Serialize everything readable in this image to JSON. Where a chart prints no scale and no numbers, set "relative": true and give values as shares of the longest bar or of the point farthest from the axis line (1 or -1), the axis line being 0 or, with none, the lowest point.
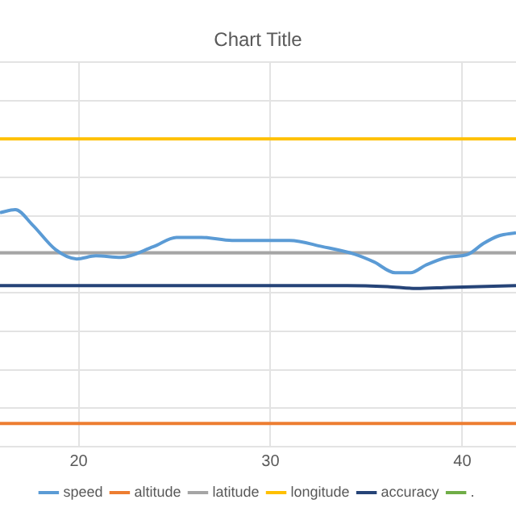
{
  "chart_data": {
    "type": "line",
    "title": "Chart Title",
    "relative": true,
    "xlim": [
      15.9,
      42.8
    ],
    "xticks": [
      20,
      30,
      40
    ],
    "grid": true,
    "legend": "bottom",
    "marker": "none",
    "series": [
      {
        "name": "speed",
        "color": "#5b9bd5",
        "x": [
          15.9,
          16.7,
          17.6,
          18.8,
          19.9,
          20.9,
          22.2,
          23.9,
          25.1,
          26.4,
          28.0,
          30.2,
          31.0,
          32.7,
          34.4,
          35.4,
          36.5,
          37.3,
          38.1,
          39.2,
          40.3,
          41.1,
          41.9,
          42.8
        ],
        "values": [
          0.52,
          0.54,
          0.44,
          0.28,
          0.22,
          0.24,
          0.23,
          0.3,
          0.36,
          0.36,
          0.34,
          0.34,
          0.34,
          0.3,
          0.25,
          0.2,
          0.13,
          0.13,
          0.18,
          0.23,
          0.25,
          0.32,
          0.37,
          0.39
        ]
      },
      {
        "name": "altitude",
        "color": "#ed7d31",
        "x": [
          15.9,
          42.8
        ],
        "values": [
          -0.85,
          -0.85
        ]
      },
      {
        "name": "latitude",
        "color": "#a5a5a5",
        "x": [
          15.9,
          42.8
        ],
        "values": [
          0.26,
          0.26
        ]
      },
      {
        "name": "longitude",
        "color": "#ffc000",
        "x": [
          15.9,
          42.8
        ],
        "values": [
          1,
          1
        ]
      },
      {
        "name": "accuracy",
        "color": "#264478",
        "x": [
          15.9,
          34.0,
          36.1,
          37.6,
          39.3,
          42.8
        ],
        "values": [
          0.047,
          0.047,
          0.04,
          0.028,
          0.035,
          0.047
        ]
      },
      {
        "name": ".",
        "color": "#70ad47"
      }
    ]
  }
}
